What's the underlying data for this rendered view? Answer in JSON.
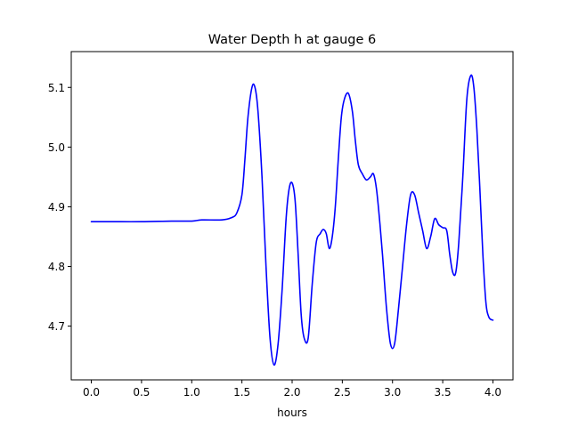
{
  "chart_data": {
    "type": "line",
    "title": "Water Depth h at gauge 6",
    "xlabel": "hours",
    "ylabel": "",
    "xlim": [
      -0.2,
      4.2
    ],
    "ylim": [
      4.61,
      5.16
    ],
    "xticks": [
      0.0,
      0.5,
      1.0,
      1.5,
      2.0,
      2.5,
      3.0,
      3.5,
      4.0
    ],
    "xtick_labels": [
      "0.0",
      "0.5",
      "1.0",
      "1.5",
      "2.0",
      "2.5",
      "3.0",
      "3.5",
      "4.0"
    ],
    "yticks": [
      4.7,
      4.8,
      4.9,
      5.0,
      5.1
    ],
    "ytick_labels": [
      "4.7",
      "4.8",
      "4.9",
      "5.0",
      "5.1"
    ],
    "grid": false,
    "line_color": "#0000ff",
    "series": [
      {
        "x": [
          0.0,
          0.2,
          0.5,
          0.8,
          1.0,
          1.1,
          1.3,
          1.4,
          1.45,
          1.5,
          1.53,
          1.56,
          1.6,
          1.63,
          1.66,
          1.7,
          1.74,
          1.78,
          1.82,
          1.86,
          1.9,
          1.94,
          1.97,
          2.0,
          2.03,
          2.06,
          2.09,
          2.12,
          2.16,
          2.2,
          2.24,
          2.28,
          2.31,
          2.34,
          2.37,
          2.4,
          2.43,
          2.46,
          2.49,
          2.52,
          2.56,
          2.6,
          2.63,
          2.66,
          2.7,
          2.74,
          2.78,
          2.81,
          2.84,
          2.87,
          2.9,
          2.94,
          2.98,
          3.02,
          3.06,
          3.1,
          3.14,
          3.18,
          3.22,
          3.26,
          3.3,
          3.34,
          3.38,
          3.42,
          3.46,
          3.5,
          3.54,
          3.57,
          3.6,
          3.63,
          3.66,
          3.7,
          3.74,
          3.78,
          3.81,
          3.84,
          3.87,
          3.9,
          3.93,
          3.96,
          4.0
        ],
        "y": [
          4.875,
          4.875,
          4.875,
          4.876,
          4.876,
          4.878,
          4.878,
          4.882,
          4.89,
          4.92,
          4.98,
          5.05,
          5.1,
          5.1,
          5.06,
          4.95,
          4.8,
          4.68,
          4.635,
          4.67,
          4.76,
          4.88,
          4.93,
          4.94,
          4.91,
          4.82,
          4.72,
          4.68,
          4.68,
          4.77,
          4.84,
          4.855,
          4.862,
          4.855,
          4.83,
          4.85,
          4.9,
          4.98,
          5.05,
          5.08,
          5.09,
          5.06,
          5.01,
          4.97,
          4.955,
          4.945,
          4.95,
          4.955,
          4.93,
          4.88,
          4.82,
          4.73,
          4.67,
          4.67,
          4.73,
          4.8,
          4.87,
          4.92,
          4.92,
          4.89,
          4.86,
          4.83,
          4.85,
          4.88,
          4.87,
          4.865,
          4.86,
          4.82,
          4.79,
          4.79,
          4.84,
          4.95,
          5.08,
          5.12,
          5.1,
          5.03,
          4.93,
          4.82,
          4.74,
          4.715,
          4.71
        ]
      }
    ]
  }
}
